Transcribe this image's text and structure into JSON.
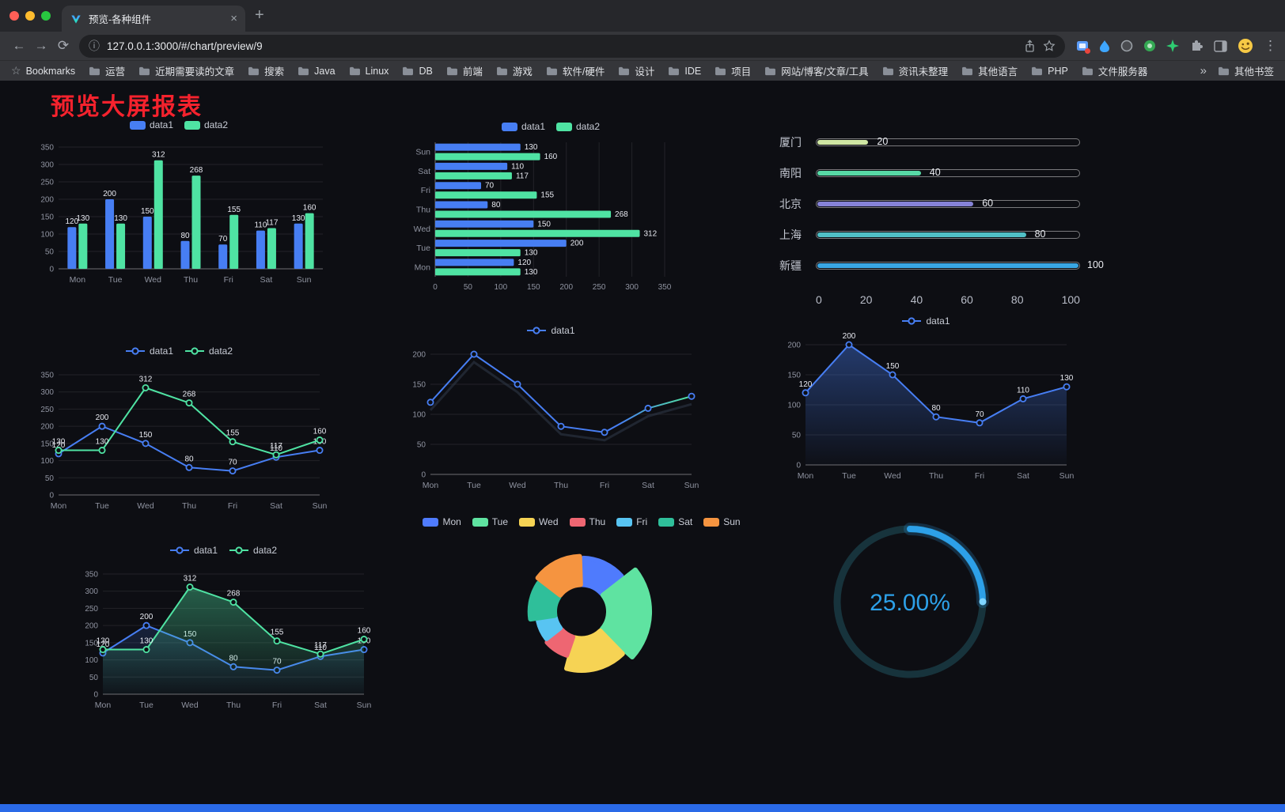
{
  "icons": {
    "back": "←",
    "forward": "→",
    "reload": "⟳",
    "close": "×",
    "new_tab": "+",
    "more": "⋮",
    "info": "ⓘ",
    "bookmarks_star": "☆"
  },
  "browser": {
    "tab": {
      "title": "预览-各种组件"
    },
    "nav": {
      "url": "127.0.0.1:3000/#/chart/preview/9"
    },
    "bookmarks_bar": {
      "label": "Bookmarks",
      "items": [
        "运营",
        "近期需要读的文章",
        "搜索",
        "Java",
        "Linux",
        "DB",
        "前端",
        "游戏",
        "软件/硬件",
        "设计",
        "IDE",
        "项目",
        "网站/博客/文章/工具",
        "资讯未整理",
        "其他语言",
        "PHP",
        "文件服务器"
      ],
      "overflow": "»",
      "other": "其他书签"
    }
  },
  "page": {
    "title": "预览大屏报表",
    "title_color": "#f5222d",
    "footer_color": "#2a6ae8",
    "background": "#0d0e13"
  },
  "chart_data": [
    {
      "id": "bar-vertical",
      "type": "bar",
      "categories": [
        "Mon",
        "Tue",
        "Wed",
        "Thu",
        "Fri",
        "Sat",
        "Sun"
      ],
      "series": [
        {
          "name": "data1",
          "color": "#477ef3",
          "values": [
            120,
            200,
            150,
            80,
            70,
            110,
            130
          ]
        },
        {
          "name": "data2",
          "color": "#4fe3a3",
          "values": [
            130,
            130,
            312,
            268,
            155,
            117,
            160
          ]
        }
      ],
      "ylim": [
        0,
        350
      ],
      "yticks": [
        0,
        50,
        100,
        150,
        200,
        250,
        300,
        350
      ],
      "show_labels": true
    },
    {
      "id": "bar-horizontal",
      "type": "hbar",
      "categories": [
        "Mon",
        "Tue",
        "Wed",
        "Thu",
        "Fri",
        "Sat",
        "Sun"
      ],
      "series": [
        {
          "name": "data1",
          "color": "#477ef3",
          "values": [
            120,
            200,
            150,
            80,
            70,
            110,
            130
          ]
        },
        {
          "name": "data2",
          "color": "#4fe3a3",
          "values": [
            130,
            130,
            312,
            268,
            155,
            117,
            160
          ]
        }
      ],
      "xlim": [
        0,
        350
      ],
      "xticks": [
        0,
        50,
        100,
        150,
        200,
        250,
        300,
        350
      ],
      "show_labels": true
    },
    {
      "id": "progress-list",
      "type": "progress",
      "max": 100,
      "ticks": [
        0,
        20,
        40,
        60,
        80,
        100
      ],
      "rows": [
        {
          "label": "厦门",
          "value": 20,
          "color": "#cfe6a3"
        },
        {
          "label": "南阳",
          "value": 40,
          "color": "#57d9a6"
        },
        {
          "label": "北京",
          "value": 60,
          "color": "#8683d8"
        },
        {
          "label": "上海",
          "value": 80,
          "color": "#50c0c6"
        },
        {
          "label": "新疆",
          "value": 100,
          "color": "#39a6e3"
        }
      ]
    },
    {
      "id": "line-two",
      "type": "line",
      "categories": [
        "Mon",
        "Tue",
        "Wed",
        "Thu",
        "Fri",
        "Sat",
        "Sun"
      ],
      "series": [
        {
          "name": "data1",
          "color": "#477ef3",
          "values": [
            120,
            200,
            150,
            80,
            70,
            110,
            130
          ],
          "labels": true
        },
        {
          "name": "data2",
          "color": "#4fe3a3",
          "values": [
            130,
            130,
            312,
            268,
            155,
            117,
            160
          ],
          "labels": true
        }
      ],
      "ylim": [
        0,
        350
      ],
      "yticks": [
        0,
        50,
        100,
        150,
        200,
        250,
        300,
        350
      ]
    },
    {
      "id": "line-smooth",
      "type": "line",
      "categories": [
        "Mon",
        "Tue",
        "Wed",
        "Thu",
        "Fri",
        "Sat",
        "Sun"
      ],
      "series": [
        {
          "name": "data1",
          "color": "#477ef3",
          "values": [
            120,
            200,
            150,
            80,
            70,
            110,
            130
          ],
          "labels": false,
          "shadow": true,
          "gradient_stroke": true
        }
      ],
      "ylim": [
        0,
        200
      ],
      "yticks": [
        0,
        50,
        100,
        150,
        200
      ]
    },
    {
      "id": "line-area",
      "type": "line",
      "categories": [
        "Mon",
        "Tue",
        "Wed",
        "Thu",
        "Fri",
        "Sat",
        "Sun"
      ],
      "series": [
        {
          "name": "data1",
          "color": "#477ef3",
          "values": [
            120,
            200,
            150,
            80,
            70,
            110,
            130
          ],
          "labels": true,
          "area": true,
          "area_opacity": 0.4
        }
      ],
      "ylim": [
        0,
        200
      ],
      "yticks": [
        0,
        50,
        100,
        150,
        200
      ]
    },
    {
      "id": "line-area-two",
      "type": "line",
      "categories": [
        "Mon",
        "Tue",
        "Wed",
        "Thu",
        "Fri",
        "Sat",
        "Sun"
      ],
      "series": [
        {
          "name": "data1",
          "color": "#477ef3",
          "values": [
            120,
            200,
            150,
            80,
            70,
            110,
            130
          ],
          "labels": true,
          "area": true,
          "area_opacity": 0.18
        },
        {
          "name": "data2",
          "color": "#4fe3a3",
          "values": [
            130,
            130,
            312,
            268,
            155,
            117,
            160
          ],
          "labels": true,
          "area": true,
          "area_opacity": 0.38
        }
      ],
      "ylim": [
        0,
        350
      ],
      "yticks": [
        0,
        50,
        100,
        150,
        200,
        250,
        300,
        350
      ]
    },
    {
      "id": "pie-rose",
      "type": "pie",
      "categories": [
        "Mon",
        "Tue",
        "Wed",
        "Thu",
        "Fri",
        "Sat",
        "Sun"
      ],
      "values": [
        120,
        200,
        150,
        80,
        70,
        110,
        130
      ],
      "colors": [
        "#4f7bfd",
        "#5fe3a1",
        "#f6d354",
        "#ee6672",
        "#58c4f2",
        "#2fbf9a",
        "#f59440"
      ]
    },
    {
      "id": "gauge",
      "type": "gauge",
      "value": 25,
      "label": "25.00%",
      "color": "#2da0e8",
      "track_color": "#17333c"
    }
  ]
}
